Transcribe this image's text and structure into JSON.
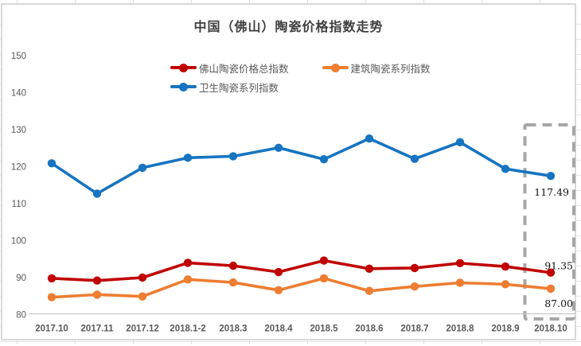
{
  "chart_data": {
    "type": "line",
    "title": "中国（佛山）陶瓷价格指数走势",
    "categories": [
      "2017.10",
      "2017.11",
      "2017.12",
      "2018.1-2",
      "2018.3",
      "2018.4",
      "2018.5",
      "2018.6",
      "2018.7",
      "2018.8",
      "2018.9",
      "2018.10"
    ],
    "series": [
      {
        "key": "total-index",
        "name": "佛山陶瓷价格总指数",
        "color": "#c00000",
        "values": [
          89.8,
          89.2,
          90.0,
          94.0,
          93.2,
          91.5,
          94.6,
          92.4,
          92.6,
          93.9,
          93.0,
          91.35
        ],
        "end_label": "91.35"
      },
      {
        "key": "building-series",
        "name": "建筑陶瓷系列指数",
        "color": "#ed7d31",
        "values": [
          84.7,
          85.4,
          84.9,
          89.5,
          88.7,
          86.6,
          89.8,
          86.4,
          87.6,
          88.6,
          88.2,
          87.0
        ],
        "end_label": "87.00"
      },
      {
        "key": "sanitary-series",
        "name": "卫生陶瓷系列指数",
        "color": "#1674c1",
        "values": [
          120.9,
          112.7,
          119.7,
          122.4,
          122.8,
          125.1,
          122.0,
          127.6,
          122.1,
          126.6,
          119.4,
          117.49
        ],
        "end_label": "117.49"
      }
    ],
    "ylim": [
      80,
      150
    ],
    "yticks": [
      80,
      90,
      100,
      110,
      120,
      130,
      140,
      150
    ],
    "grid": false,
    "legend_position": "top",
    "annotations": {
      "highlight_last_category": "2018.10",
      "highlight_style": "gray-dashed-box"
    }
  },
  "colors": {
    "axis_text": "#595959",
    "title_text": "#3f3f3f",
    "axis_line": "#c6c6c6",
    "chart_border": "#d9d9d9",
    "highlight_box": "#a6a6a6",
    "end_label_text": "#111111"
  }
}
